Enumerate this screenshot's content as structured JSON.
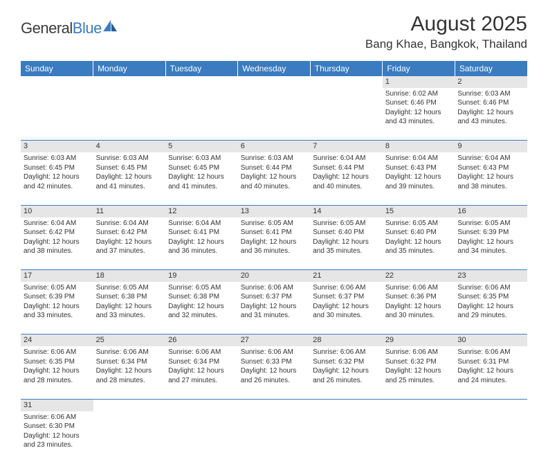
{
  "logo": {
    "text1": "General",
    "text2": "Blue"
  },
  "title": "August 2025",
  "location": "Bang Khae, Bangkok, Thailand",
  "colors": {
    "header_bg": "#3b7bbf",
    "header_text": "#ffffff",
    "daynum_bg": "#e6e6e6",
    "rule": "#3b7bbf",
    "text": "#333333",
    "page_bg": "#ffffff"
  },
  "weekdays": [
    "Sunday",
    "Monday",
    "Tuesday",
    "Wednesday",
    "Thursday",
    "Friday",
    "Saturday"
  ],
  "weeks": [
    [
      {
        "n": "",
        "lines": []
      },
      {
        "n": "",
        "lines": []
      },
      {
        "n": "",
        "lines": []
      },
      {
        "n": "",
        "lines": []
      },
      {
        "n": "",
        "lines": []
      },
      {
        "n": "1",
        "lines": [
          "Sunrise: 6:02 AM",
          "Sunset: 6:46 PM",
          "Daylight: 12 hours",
          "and 43 minutes."
        ]
      },
      {
        "n": "2",
        "lines": [
          "Sunrise: 6:03 AM",
          "Sunset: 6:46 PM",
          "Daylight: 12 hours",
          "and 43 minutes."
        ]
      }
    ],
    [
      {
        "n": "3",
        "lines": [
          "Sunrise: 6:03 AM",
          "Sunset: 6:45 PM",
          "Daylight: 12 hours",
          "and 42 minutes."
        ]
      },
      {
        "n": "4",
        "lines": [
          "Sunrise: 6:03 AM",
          "Sunset: 6:45 PM",
          "Daylight: 12 hours",
          "and 41 minutes."
        ]
      },
      {
        "n": "5",
        "lines": [
          "Sunrise: 6:03 AM",
          "Sunset: 6:45 PM",
          "Daylight: 12 hours",
          "and 41 minutes."
        ]
      },
      {
        "n": "6",
        "lines": [
          "Sunrise: 6:03 AM",
          "Sunset: 6:44 PM",
          "Daylight: 12 hours",
          "and 40 minutes."
        ]
      },
      {
        "n": "7",
        "lines": [
          "Sunrise: 6:04 AM",
          "Sunset: 6:44 PM",
          "Daylight: 12 hours",
          "and 40 minutes."
        ]
      },
      {
        "n": "8",
        "lines": [
          "Sunrise: 6:04 AM",
          "Sunset: 6:43 PM",
          "Daylight: 12 hours",
          "and 39 minutes."
        ]
      },
      {
        "n": "9",
        "lines": [
          "Sunrise: 6:04 AM",
          "Sunset: 6:43 PM",
          "Daylight: 12 hours",
          "and 38 minutes."
        ]
      }
    ],
    [
      {
        "n": "10",
        "lines": [
          "Sunrise: 6:04 AM",
          "Sunset: 6:42 PM",
          "Daylight: 12 hours",
          "and 38 minutes."
        ]
      },
      {
        "n": "11",
        "lines": [
          "Sunrise: 6:04 AM",
          "Sunset: 6:42 PM",
          "Daylight: 12 hours",
          "and 37 minutes."
        ]
      },
      {
        "n": "12",
        "lines": [
          "Sunrise: 6:04 AM",
          "Sunset: 6:41 PM",
          "Daylight: 12 hours",
          "and 36 minutes."
        ]
      },
      {
        "n": "13",
        "lines": [
          "Sunrise: 6:05 AM",
          "Sunset: 6:41 PM",
          "Daylight: 12 hours",
          "and 36 minutes."
        ]
      },
      {
        "n": "14",
        "lines": [
          "Sunrise: 6:05 AM",
          "Sunset: 6:40 PM",
          "Daylight: 12 hours",
          "and 35 minutes."
        ]
      },
      {
        "n": "15",
        "lines": [
          "Sunrise: 6:05 AM",
          "Sunset: 6:40 PM",
          "Daylight: 12 hours",
          "and 35 minutes."
        ]
      },
      {
        "n": "16",
        "lines": [
          "Sunrise: 6:05 AM",
          "Sunset: 6:39 PM",
          "Daylight: 12 hours",
          "and 34 minutes."
        ]
      }
    ],
    [
      {
        "n": "17",
        "lines": [
          "Sunrise: 6:05 AM",
          "Sunset: 6:39 PM",
          "Daylight: 12 hours",
          "and 33 minutes."
        ]
      },
      {
        "n": "18",
        "lines": [
          "Sunrise: 6:05 AM",
          "Sunset: 6:38 PM",
          "Daylight: 12 hours",
          "and 33 minutes."
        ]
      },
      {
        "n": "19",
        "lines": [
          "Sunrise: 6:05 AM",
          "Sunset: 6:38 PM",
          "Daylight: 12 hours",
          "and 32 minutes."
        ]
      },
      {
        "n": "20",
        "lines": [
          "Sunrise: 6:06 AM",
          "Sunset: 6:37 PM",
          "Daylight: 12 hours",
          "and 31 minutes."
        ]
      },
      {
        "n": "21",
        "lines": [
          "Sunrise: 6:06 AM",
          "Sunset: 6:37 PM",
          "Daylight: 12 hours",
          "and 30 minutes."
        ]
      },
      {
        "n": "22",
        "lines": [
          "Sunrise: 6:06 AM",
          "Sunset: 6:36 PM",
          "Daylight: 12 hours",
          "and 30 minutes."
        ]
      },
      {
        "n": "23",
        "lines": [
          "Sunrise: 6:06 AM",
          "Sunset: 6:35 PM",
          "Daylight: 12 hours",
          "and 29 minutes."
        ]
      }
    ],
    [
      {
        "n": "24",
        "lines": [
          "Sunrise: 6:06 AM",
          "Sunset: 6:35 PM",
          "Daylight: 12 hours",
          "and 28 minutes."
        ]
      },
      {
        "n": "25",
        "lines": [
          "Sunrise: 6:06 AM",
          "Sunset: 6:34 PM",
          "Daylight: 12 hours",
          "and 28 minutes."
        ]
      },
      {
        "n": "26",
        "lines": [
          "Sunrise: 6:06 AM",
          "Sunset: 6:34 PM",
          "Daylight: 12 hours",
          "and 27 minutes."
        ]
      },
      {
        "n": "27",
        "lines": [
          "Sunrise: 6:06 AM",
          "Sunset: 6:33 PM",
          "Daylight: 12 hours",
          "and 26 minutes."
        ]
      },
      {
        "n": "28",
        "lines": [
          "Sunrise: 6:06 AM",
          "Sunset: 6:32 PM",
          "Daylight: 12 hours",
          "and 26 minutes."
        ]
      },
      {
        "n": "29",
        "lines": [
          "Sunrise: 6:06 AM",
          "Sunset: 6:32 PM",
          "Daylight: 12 hours",
          "and 25 minutes."
        ]
      },
      {
        "n": "30",
        "lines": [
          "Sunrise: 6:06 AM",
          "Sunset: 6:31 PM",
          "Daylight: 12 hours",
          "and 24 minutes."
        ]
      }
    ],
    [
      {
        "n": "31",
        "lines": [
          "Sunrise: 6:06 AM",
          "Sunset: 6:30 PM",
          "Daylight: 12 hours",
          "and 23 minutes."
        ]
      },
      {
        "n": "",
        "lines": []
      },
      {
        "n": "",
        "lines": []
      },
      {
        "n": "",
        "lines": []
      },
      {
        "n": "",
        "lines": []
      },
      {
        "n": "",
        "lines": []
      },
      {
        "n": "",
        "lines": []
      }
    ]
  ]
}
